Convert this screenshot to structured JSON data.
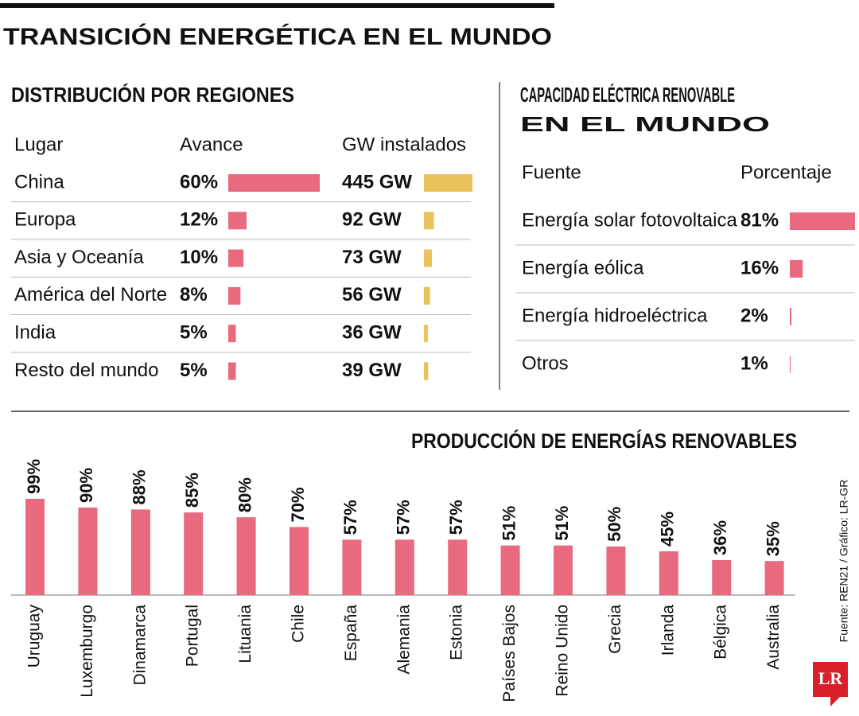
{
  "title": "TRANSICIÓN ENERGÉTICA EN EL MUNDO",
  "source": "Fuente: REN21 / Gráfico: LR-GR",
  "logo": "LR",
  "chart_data": [
    {
      "type": "bar",
      "orientation": "horizontal",
      "title": "DISTRIBUCIÓN POR REGIONES",
      "category_header": "Lugar",
      "categories": [
        "China",
        "Europa",
        "Asia y Oceanía",
        "América del Norte",
        "India",
        "Resto del mundo"
      ],
      "series": [
        {
          "name": "Avance",
          "color": "#e9697e",
          "values": [
            60,
            12,
            10,
            8,
            5,
            5
          ],
          "value_labels": [
            "60%",
            "12%",
            "10%",
            "8%",
            "5%",
            "5%"
          ]
        },
        {
          "name": "GW instalados",
          "color": "#e8c25a",
          "values": [
            445,
            92,
            73,
            56,
            36,
            39
          ],
          "value_labels": [
            "445 GW",
            "92 GW",
            "73 GW",
            "56 GW",
            "36 GW",
            "39 GW"
          ]
        }
      ]
    },
    {
      "type": "bar",
      "orientation": "horizontal",
      "title": "CAPACIDAD ELÉCTRICA RENOVABLE EN EL MUNDO",
      "category_header": "Fuente",
      "categories": [
        "Energía solar fotovoltaica",
        "Energía eólica",
        "Energía hidroeléctrica",
        "Otros"
      ],
      "series": [
        {
          "name": "Porcentaje",
          "color": "#e9697e",
          "values": [
            81,
            16,
            2,
            1
          ],
          "value_labels": [
            "81%",
            "16%",
            "2%",
            "1%"
          ]
        }
      ]
    },
    {
      "type": "bar",
      "orientation": "vertical",
      "title": "PRODUCCIÓN DE ENERGÍAS RENOVABLES",
      "color": "#e9697e",
      "categories": [
        "Uruguay",
        "Luxemburgo",
        "Dinamarca",
        "Portugal",
        "Lituania",
        "Chile",
        "España",
        "Alemania",
        "Estonia",
        "Países Bajos",
        "Reino Unido",
        "Grecia",
        "Irlanda",
        "Bélgica",
        "Australia"
      ],
      "values": [
        99,
        90,
        88,
        85,
        80,
        70,
        57,
        57,
        57,
        51,
        51,
        50,
        45,
        36,
        35
      ],
      "value_labels": [
        "99%",
        "90%",
        "88%",
        "85%",
        "80%",
        "70%",
        "57%",
        "57%",
        "57%",
        "51%",
        "51%",
        "50%",
        "45%",
        "36%",
        "35%"
      ]
    }
  ]
}
